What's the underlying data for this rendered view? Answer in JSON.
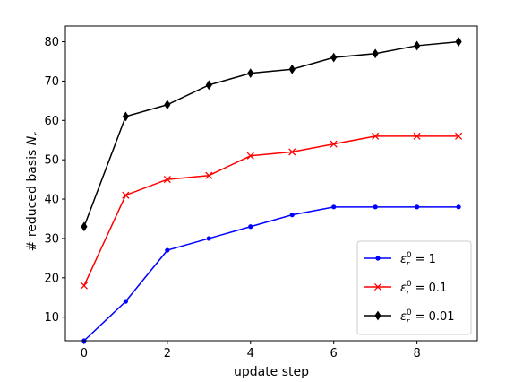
{
  "chart_data": {
    "type": "line",
    "xlabel": "update step",
    "ylabel": "# reduced basis N_r",
    "x": [
      0,
      1,
      2,
      3,
      4,
      5,
      6,
      7,
      8,
      9
    ],
    "xlim": [
      -0.45,
      9.45
    ],
    "ylim": [
      4,
      84
    ],
    "xticks": [
      0,
      2,
      4,
      6,
      8
    ],
    "yticks": [
      10,
      20,
      30,
      40,
      50,
      60,
      70,
      80
    ],
    "grid": false,
    "legend_position": "bottom-right",
    "series": [
      {
        "name": "ε_r^0 = 1",
        "label_base": "ε",
        "label_sub": "r",
        "label_sup": "0",
        "label_rest": " = 1",
        "color": "#0000ff",
        "marker": "dot",
        "values": [
          4,
          14,
          27,
          30,
          33,
          36,
          38,
          38,
          38,
          38
        ]
      },
      {
        "name": "ε_r^0 = 0.1",
        "label_base": "ε",
        "label_sub": "r",
        "label_sup": "0",
        "label_rest": " = 0.1",
        "color": "#ff0000",
        "marker": "x",
        "values": [
          18,
          41,
          45,
          46,
          51,
          52,
          54,
          56,
          56,
          56
        ]
      },
      {
        "name": "ε_r^0 = 0.01",
        "label_base": "ε",
        "label_sub": "r",
        "label_sup": "0",
        "label_rest": " = 0.01",
        "color": "#000000",
        "marker": "diamond",
        "values": [
          33,
          61,
          64,
          69,
          72,
          73,
          76,
          77,
          79,
          80
        ]
      }
    ]
  }
}
